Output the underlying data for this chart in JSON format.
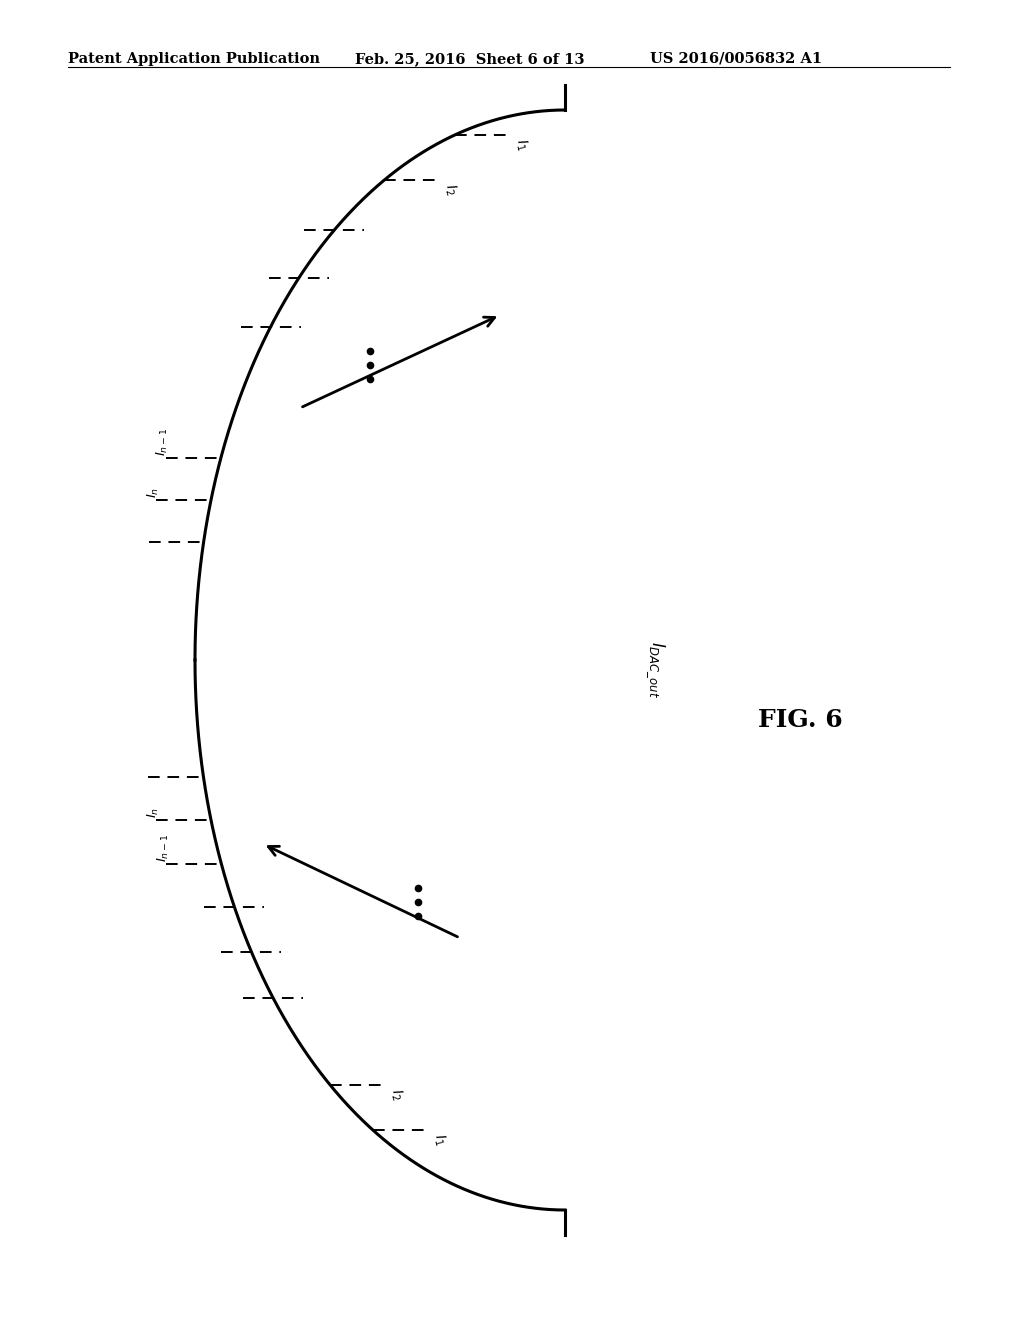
{
  "header_left": "Patent Application Publication",
  "header_mid": "Feb. 25, 2016  Sheet 6 of 13",
  "header_right": "US 2016/0056832 A1",
  "fig_label": "FIG. 6",
  "background_color": "#ffffff",
  "line_color": "#000000",
  "header_fontsize": 11
}
